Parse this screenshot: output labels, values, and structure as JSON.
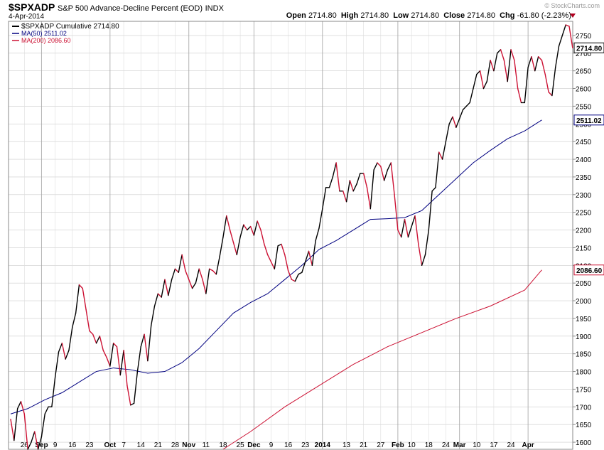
{
  "header": {
    "symbol": "$SPXADP",
    "name": "S&P 500 Advance-Decline Percent (EOD)",
    "exchange": "INDX",
    "date": "4-Apr-2014",
    "open_label": "Open",
    "open": "2714.80",
    "high_label": "High",
    "high": "2714.80",
    "low_label": "Low",
    "low": "2714.80",
    "close_label": "Close",
    "close": "2714.80",
    "chg_label": "Chg",
    "chg": "-61.80 (-2.23%)",
    "watermark": "© StockCharts.com"
  },
  "colors": {
    "price_up": "#000000",
    "price_down": "#cc1133",
    "ma50": "#000080",
    "ma200": "#cc1133",
    "grid": "#cccccc"
  },
  "chart_data": {
    "type": "line",
    "ylim": [
      1580,
      2790
    ],
    "yticks": [
      1600,
      1650,
      1700,
      1750,
      1800,
      1850,
      1900,
      1950,
      2000,
      2050,
      2100,
      2150,
      2200,
      2250,
      2300,
      2350,
      2400,
      2450,
      2500,
      2550,
      2600,
      2650,
      2700,
      2750
    ],
    "x_range": [
      0,
      163
    ],
    "xticks": [
      {
        "i": 4,
        "label": "26"
      },
      {
        "i": 9,
        "label": "Sep"
      },
      {
        "i": 13,
        "label": "9"
      },
      {
        "i": 18,
        "label": "16"
      },
      {
        "i": 23,
        "label": "23"
      },
      {
        "i": 29,
        "label": "Oct"
      },
      {
        "i": 33,
        "label": "7"
      },
      {
        "i": 38,
        "label": "14"
      },
      {
        "i": 43,
        "label": "21"
      },
      {
        "i": 48,
        "label": "28"
      },
      {
        "i": 52,
        "label": "Nov"
      },
      {
        "i": 57,
        "label": "11"
      },
      {
        "i": 62,
        "label": "18"
      },
      {
        "i": 67,
        "label": "25"
      },
      {
        "i": 71,
        "label": "Dec"
      },
      {
        "i": 76,
        "label": "9"
      },
      {
        "i": 81,
        "label": "16"
      },
      {
        "i": 86,
        "label": "23"
      },
      {
        "i": 91,
        "label": "2014"
      },
      {
        "i": 98,
        "label": "13"
      },
      {
        "i": 103,
        "label": "21"
      },
      {
        "i": 108,
        "label": "27"
      },
      {
        "i": 113,
        "label": "Feb"
      },
      {
        "i": 117,
        "label": "10"
      },
      {
        "i": 122,
        "label": "18"
      },
      {
        "i": 127,
        "label": "24"
      },
      {
        "i": 131,
        "label": "Mar"
      },
      {
        "i": 136,
        "label": "10"
      },
      {
        "i": 141,
        "label": "17"
      },
      {
        "i": 146,
        "label": "24"
      },
      {
        "i": 151,
        "label": "Apr"
      }
    ],
    "month_lines": [
      9,
      29,
      52,
      71,
      91,
      113,
      131,
      151
    ],
    "series": [
      {
        "name": "$SPXADP Cumulative 2714.80",
        "values": [
          1665,
          1605,
          1695,
          1715,
          1680,
          1580,
          1600,
          1630,
          1580,
          1615,
          1680,
          1700,
          1700,
          1785,
          1855,
          1880,
          1835,
          1860,
          1925,
          1965,
          2045,
          2035,
          1975,
          1915,
          1905,
          1880,
          1900,
          1860,
          1840,
          1815,
          1880,
          1870,
          1790,
          1860,
          1760,
          1705,
          1710,
          1800,
          1870,
          1905,
          1830,
          1930,
          1985,
          2020,
          2010,
          2060,
          2015,
          2060,
          2090,
          2080,
          2130,
          2085,
          2060,
          2035,
          2050,
          2090,
          2060,
          2020,
          2090,
          2085,
          2075,
          2125,
          2180,
          2240,
          2200,
          2165,
          2130,
          2180,
          2215,
          2200,
          2210,
          2185,
          2225,
          2200,
          2160,
          2130,
          2110,
          2090,
          2155,
          2160,
          2130,
          2085,
          2060,
          2055,
          2075,
          2080,
          2110,
          2140,
          2100,
          2170,
          2205,
          2260,
          2320,
          2320,
          2350,
          2390,
          2310,
          2310,
          2280,
          2340,
          2310,
          2330,
          2360,
          2360,
          2320,
          2260,
          2370,
          2390,
          2380,
          2340,
          2370,
          2390,
          2300,
          2200,
          2180,
          2230,
          2180,
          2210,
          2240,
          2160,
          2100,
          2130,
          2200,
          2310,
          2320,
          2420,
          2400,
          2450,
          2500,
          2520,
          2490,
          2515,
          2540,
          2550,
          2560,
          2600,
          2640,
          2650,
          2600,
          2620,
          2680,
          2650,
          2700,
          2710,
          2680,
          2620,
          2710,
          2680,
          2600,
          2560,
          2560,
          2660,
          2690,
          2650,
          2690,
          2680,
          2640,
          2590,
          2580,
          2660,
          2720,
          2750,
          2780,
          2776,
          2715
        ]
      },
      {
        "name": "MA(50) 2511.02",
        "x": [
          0,
          5,
          10,
          15,
          20,
          25,
          30,
          35,
          40,
          45,
          50,
          55,
          60,
          65,
          70,
          75,
          80,
          85,
          90,
          95,
          100,
          105,
          110,
          115,
          120,
          125,
          130,
          135,
          140,
          145,
          150,
          155
        ],
        "values": [
          1680,
          1695,
          1720,
          1740,
          1770,
          1800,
          1810,
          1805,
          1795,
          1800,
          1825,
          1865,
          1915,
          1965,
          1995,
          2020,
          2060,
          2100,
          2145,
          2170,
          2200,
          2230,
          2232,
          2235,
          2255,
          2300,
          2345,
          2390,
          2425,
          2458,
          2480,
          2511
        ]
      },
      {
        "name": "MA(200) 2086.60",
        "x": [
          62,
          70,
          80,
          90,
          100,
          110,
          120,
          130,
          140,
          150,
          155
        ],
        "values": [
          1580,
          1630,
          1700,
          1760,
          1820,
          1870,
          1910,
          1950,
          1985,
          2030,
          2087
        ]
      }
    ]
  },
  "legend": {
    "series1": "$SPXADP Cumulative 2714.80",
    "series2": "MA(50) 2511.02",
    "series3": "MA(200) 2086.60"
  },
  "axis_tags": {
    "price": "2714.80",
    "ma50": "2511.02",
    "ma200": "2086.60"
  }
}
